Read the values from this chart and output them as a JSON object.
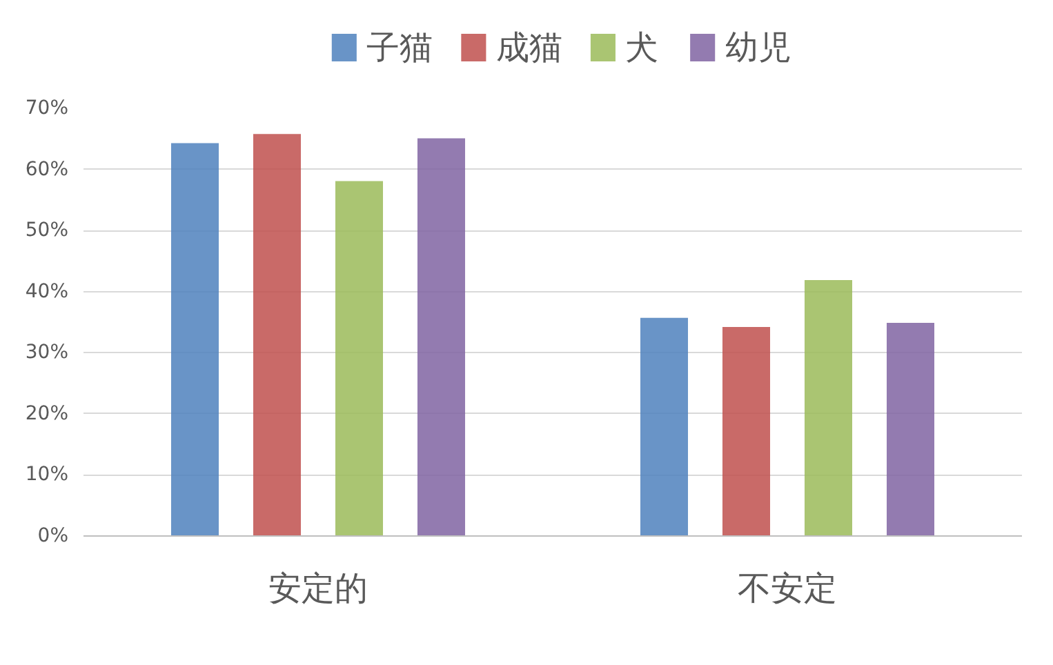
{
  "chart_data": {
    "type": "bar",
    "categories": [
      "安定的",
      "不安定"
    ],
    "series": [
      {
        "name": "子猫",
        "color": "#4f81bd",
        "values": [
          64.3,
          35.7
        ]
      },
      {
        "name": "成猫",
        "color": "#c0504d",
        "values": [
          65.8,
          34.2
        ]
      },
      {
        "name": "犬",
        "color": "#9bbb59",
        "values": [
          58.1,
          41.9
        ]
      },
      {
        "name": "幼児",
        "color": "#8064a2",
        "values": [
          65.1,
          34.9
        ]
      }
    ],
    "ylim": [
      0,
      70
    ],
    "yticks": [
      {
        "value": 0,
        "label": "0%"
      },
      {
        "value": 10,
        "label": "10%"
      },
      {
        "value": 20,
        "label": "20%"
      },
      {
        "value": 30,
        "label": "30%"
      },
      {
        "value": 40,
        "label": "40%"
      },
      {
        "value": 50,
        "label": "50%"
      },
      {
        "value": 60,
        "label": "60%"
      },
      {
        "value": 70,
        "label": "70%"
      }
    ],
    "grid": "y",
    "legend": "top"
  }
}
